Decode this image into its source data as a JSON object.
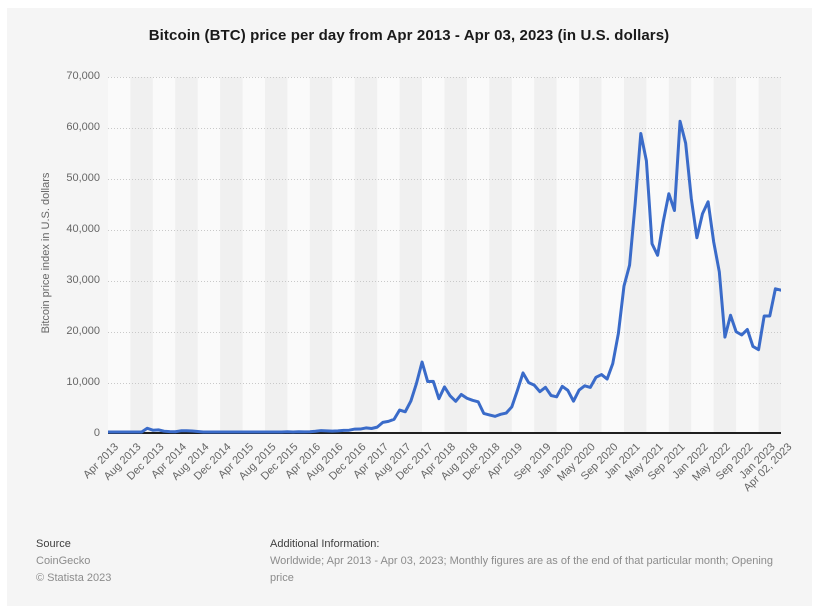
{
  "title": "Bitcoin (BTC) price per day from Apr 2013 - Apr 03, 2023 (in U.S. dollars)",
  "y_axis": {
    "title": "Bitcoin price index in U.S. dollars",
    "tick_labels": [
      "70,000",
      "60,000",
      "50,000",
      "40,000",
      "30,000",
      "20,000",
      "10,000",
      "0"
    ]
  },
  "footer": {
    "source_label": "Source",
    "source_name": "CoinGecko",
    "copyright": "© Statista 2023",
    "additional_info_label": "Additional Information:",
    "additional_info": "Worldwide; Apr 2013 - Apr 03, 2023; Monthly figures are as of the end of that particular month; Opening price"
  },
  "colors": {
    "line": "#3a6bc9",
    "card_bg": "#f5f5f5",
    "band_light": "#fafafa",
    "band_dark": "#f0f0f0",
    "grid": "#c9c9c9",
    "axis": "#1f1f1f",
    "label_gray": "#666666"
  },
  "chart_data": {
    "type": "line",
    "title": "Bitcoin (BTC) price per day from Apr 2013 - Apr 03, 2023 (in U.S. dollars)",
    "xlabel": "",
    "ylabel": "Bitcoin price index in U.S. dollars",
    "ylim": [
      0,
      70000
    ],
    "y_ticks": [
      0,
      10000,
      20000,
      30000,
      40000,
      50000,
      60000,
      70000
    ],
    "grid": "dotted horizontal gridlines, alternating vertical background bands",
    "legend": "none",
    "x_interval": "monthly",
    "x_start": "Apr 2013",
    "x_end": "Apr 02, 2023",
    "x_tick_labels": [
      {
        "label": "Apr 2013",
        "m": 0
      },
      {
        "label": "Aug 2013",
        "m": 4
      },
      {
        "label": "Dec 2013",
        "m": 8
      },
      {
        "label": "Apr 2014",
        "m": 12
      },
      {
        "label": "Aug 2014",
        "m": 16
      },
      {
        "label": "Dec 2014",
        "m": 20
      },
      {
        "label": "Apr 2015",
        "m": 24
      },
      {
        "label": "Aug 2015",
        "m": 28
      },
      {
        "label": "Dec 2015",
        "m": 32
      },
      {
        "label": "Apr 2016",
        "m": 36
      },
      {
        "label": "Aug 2016",
        "m": 40
      },
      {
        "label": "Dec 2016",
        "m": 44
      },
      {
        "label": "Apr 2017",
        "m": 48
      },
      {
        "label": "Aug 2017",
        "m": 52
      },
      {
        "label": "Dec 2017",
        "m": 56
      },
      {
        "label": "Apr 2018",
        "m": 60
      },
      {
        "label": "Aug 2018",
        "m": 64
      },
      {
        "label": "Dec 2018",
        "m": 68
      },
      {
        "label": "Apr 2019",
        "m": 72
      },
      {
        "label": "Sep 2019",
        "m": 77
      },
      {
        "label": "Jan 2020",
        "m": 81
      },
      {
        "label": "May 2020",
        "m": 85
      },
      {
        "label": "Sep 2020",
        "m": 89
      },
      {
        "label": "Jan 2021",
        "m": 93
      },
      {
        "label": "May 2021",
        "m": 97
      },
      {
        "label": "Sep 2021",
        "m": 101
      },
      {
        "label": "Jan 2022",
        "m": 105
      },
      {
        "label": "May 2022",
        "m": 109
      },
      {
        "label": "Sep 2022",
        "m": 113
      },
      {
        "label": "Jan 2023",
        "m": 117
      },
      {
        "label": "Apr 02, 2023",
        "m": 120
      }
    ],
    "series": [
      {
        "name": "Bitcoin price in U.S. dollars",
        "values": [
          144,
          129,
          97,
          106,
          141,
          141,
          204,
          1127,
          746,
          806,
          550,
          458,
          446,
          627,
          641,
          583,
          481,
          388,
          338,
          376,
          319,
          218,
          254,
          247,
          236,
          230,
          263,
          284,
          230,
          236,
          314,
          377,
          430,
          369,
          437,
          416,
          448,
          531,
          673,
          624,
          575,
          609,
          700,
          745,
          963,
          970,
          1190,
          1080,
          1347,
          2286,
          2480,
          2875,
          4703,
          4360,
          6450,
          9916,
          14112,
          10285,
          10325,
          6926,
          9240,
          7485,
          6404,
          7750,
          7012,
          6601,
          6317,
          4040,
          3740,
          3460,
          3854,
          4105,
          5320,
          8550,
          11970,
          10080,
          9590,
          8300,
          9150,
          7550,
          7290,
          9350,
          8550,
          6440,
          8620,
          9450,
          9140,
          11110,
          11650,
          10780,
          13800,
          19700,
          28990,
          33110,
          45160,
          58930,
          53570,
          37300,
          35040,
          41630,
          47110,
          43820,
          61320,
          57010,
          46210,
          38480,
          43190,
          45540,
          37650,
          31790,
          19000,
          23290,
          20050,
          19420,
          20490,
          17160,
          16540,
          23130,
          23140,
          28470,
          28200
        ]
      }
    ]
  }
}
